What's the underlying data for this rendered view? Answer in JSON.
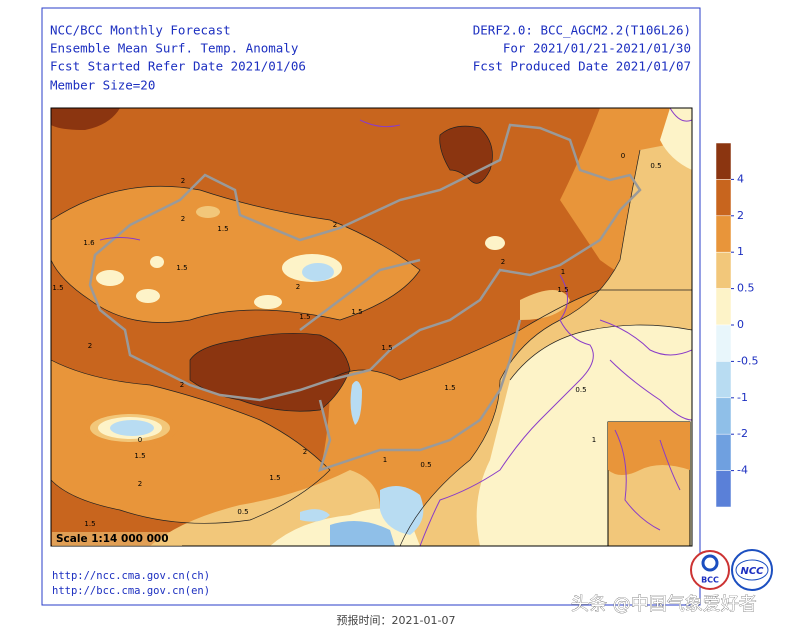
{
  "header": {
    "left": [
      "NCC/BCC Monthly Forecast",
      "Ensemble Mean Surf. Temp. Anomaly",
      "Fcst Started Refer Date 2021/01/06",
      "Member Size=20"
    ],
    "right": [
      "DERF2.0: BCC_AGCM2.2(T106L26)",
      "For 2021/01/21-2021/01/30",
      "Fcst Produced Date 2021/01/07"
    ]
  },
  "map": {
    "scale": "Scale 1:14 000 000",
    "contour_labels": [
      "2",
      "2",
      "1.5",
      "1.6",
      "1.5",
      "1.5",
      "2",
      "2",
      "1.5",
      "1.5",
      "1.5",
      "2",
      "2",
      "1.5",
      "0",
      "1.5",
      "2",
      "1.5",
      "0.5",
      "1.5",
      "0",
      "0.5",
      "1",
      "1.5",
      "0.5",
      "0.5",
      "1",
      "2",
      "2",
      "1"
    ]
  },
  "colorbar": {
    "ticks": [
      4,
      2,
      1,
      0.5,
      0,
      -0.5,
      -1,
      -2,
      -4
    ],
    "colors": [
      "#8b3510",
      "#c8651e",
      "#e8953a",
      "#f2c77a",
      "#fdf3c8",
      "#e8f6fb",
      "#b8dcf2",
      "#8fbfe8",
      "#6fa0e0",
      "#5a80d8"
    ]
  },
  "links": [
    "http://ncc.cma.gov.cn(ch)",
    "http://bcc.cma.gov.cn(en)"
  ],
  "logos": [
    "BCC",
    "NCC"
  ],
  "watermark": "头条 @中国气象爱好者",
  "footer": "预报时间：2021-01-07"
}
